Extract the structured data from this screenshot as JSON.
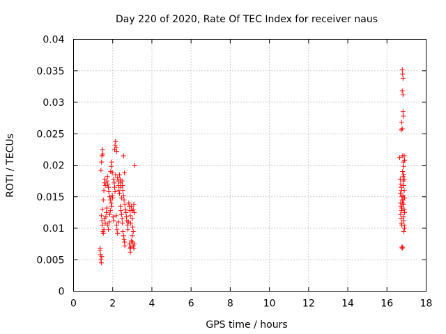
{
  "chart_data": {
    "type": "scatter",
    "title": "Day 220 of 2020, Rate Of TEC Index for receiver naus",
    "xlabel": "GPS time / hours",
    "ylabel": "ROTI / TECUs",
    "xlim": [
      0,
      18
    ],
    "ylim": [
      0,
      0.04
    ],
    "xticks": [
      0,
      2,
      4,
      6,
      8,
      10,
      12,
      14,
      16,
      18
    ],
    "xtick_labels": [
      "0",
      "2",
      "4",
      "6",
      "8",
      "10",
      "12",
      "14",
      "16",
      "18"
    ],
    "yticks": [
      0,
      0.005,
      0.01,
      0.015,
      0.02,
      0.025,
      0.03,
      0.035,
      0.04
    ],
    "ytick_labels": [
      "0",
      "0.005",
      "0.01",
      "0.015",
      "0.02",
      "0.025",
      "0.03",
      "0.035",
      "0.04"
    ],
    "grid": true,
    "marker": "+",
    "marker_color": "#ff0000",
    "series": [
      {
        "name": "naus",
        "points": [
          [
            1.35,
            0.0065
          ],
          [
            1.38,
            0.0058
          ],
          [
            1.4,
            0.005
          ],
          [
            1.42,
            0.0045
          ],
          [
            1.44,
            0.0055
          ],
          [
            1.36,
            0.0068
          ],
          [
            1.4,
            0.0192
          ],
          [
            1.43,
            0.0205
          ],
          [
            1.45,
            0.0215
          ],
          [
            1.48,
            0.0225
          ],
          [
            1.5,
            0.0218
          ],
          [
            1.42,
            0.012
          ],
          [
            1.45,
            0.0112
          ],
          [
            1.48,
            0.0105
          ],
          [
            1.5,
            0.0095
          ],
          [
            1.52,
            0.0092
          ],
          [
            1.55,
            0.0098
          ],
          [
            1.47,
            0.013
          ],
          [
            1.52,
            0.0145
          ],
          [
            1.55,
            0.016
          ],
          [
            1.58,
            0.0172
          ],
          [
            1.6,
            0.0178
          ],
          [
            1.62,
            0.0168
          ],
          [
            1.58,
            0.0115
          ],
          [
            1.62,
            0.0108
          ],
          [
            1.65,
            0.0118
          ],
          [
            1.68,
            0.0125
          ],
          [
            1.7,
            0.0132
          ],
          [
            1.7,
            0.0175
          ],
          [
            1.73,
            0.0182
          ],
          [
            1.75,
            0.017
          ],
          [
            1.78,
            0.0165
          ],
          [
            1.8,
            0.0158
          ],
          [
            1.75,
            0.0105
          ],
          [
            1.78,
            0.0098
          ],
          [
            1.82,
            0.011
          ],
          [
            1.85,
            0.0122
          ],
          [
            1.88,
            0.0128
          ],
          [
            1.85,
            0.015
          ],
          [
            1.88,
            0.0145
          ],
          [
            1.9,
            0.019
          ],
          [
            1.92,
            0.0198
          ],
          [
            1.95,
            0.0205
          ],
          [
            1.98,
            0.0188
          ],
          [
            1.92,
            0.014
          ],
          [
            1.95,
            0.0135
          ],
          [
            1.98,
            0.0152
          ],
          [
            2.0,
            0.0148
          ],
          [
            2.02,
            0.0118
          ],
          [
            2.05,
            0.0112
          ],
          [
            2.05,
            0.0178
          ],
          [
            2.08,
            0.0172
          ],
          [
            2.1,
            0.0165
          ],
          [
            2.12,
            0.0158
          ],
          [
            2.15,
            0.0185
          ],
          [
            2.1,
            0.0225
          ],
          [
            2.12,
            0.0232
          ],
          [
            2.15,
            0.0238
          ],
          [
            2.18,
            0.0228
          ],
          [
            2.2,
            0.0222
          ],
          [
            2.18,
            0.012
          ],
          [
            2.2,
            0.0105
          ],
          [
            2.22,
            0.0098
          ],
          [
            2.25,
            0.0092
          ],
          [
            2.28,
            0.011
          ],
          [
            2.25,
            0.018
          ],
          [
            2.28,
            0.0175
          ],
          [
            2.3,
            0.0168
          ],
          [
            2.32,
            0.016
          ],
          [
            2.35,
            0.0155
          ],
          [
            2.35,
            0.0185
          ],
          [
            2.38,
            0.0178
          ],
          [
            2.4,
            0.0172
          ],
          [
            2.42,
            0.0165
          ],
          [
            2.45,
            0.0148
          ],
          [
            2.4,
            0.0135
          ],
          [
            2.42,
            0.0128
          ],
          [
            2.45,
            0.0122
          ],
          [
            2.48,
            0.0115
          ],
          [
            2.5,
            0.0108
          ],
          [
            2.48,
            0.0175
          ],
          [
            2.5,
            0.0168
          ],
          [
            2.52,
            0.016
          ],
          [
            2.55,
            0.0152
          ],
          [
            2.58,
            0.0145
          ],
          [
            2.52,
            0.0095
          ],
          [
            2.55,
            0.0088
          ],
          [
            2.58,
            0.0082
          ],
          [
            2.6,
            0.0078
          ],
          [
            2.62,
            0.0072
          ],
          [
            2.55,
            0.0215
          ],
          [
            2.6,
            0.0188
          ],
          [
            2.62,
            0.0138
          ],
          [
            2.65,
            0.013
          ],
          [
            2.68,
            0.0125
          ],
          [
            2.7,
            0.0118
          ],
          [
            2.72,
            0.0112
          ],
          [
            2.75,
            0.0105
          ],
          [
            2.78,
            0.0098
          ],
          [
            2.8,
            0.011
          ],
          [
            2.82,
            0.014
          ],
          [
            2.85,
            0.0135
          ],
          [
            2.88,
            0.0128
          ],
          [
            2.9,
            0.012
          ],
          [
            2.92,
            0.0108
          ],
          [
            2.85,
            0.0075
          ],
          [
            2.88,
            0.0068
          ],
          [
            2.9,
            0.0062
          ],
          [
            2.92,
            0.007
          ],
          [
            2.95,
            0.008
          ],
          [
            2.95,
            0.0135
          ],
          [
            2.98,
            0.0128
          ],
          [
            3.0,
            0.0115
          ],
          [
            3.02,
            0.0102
          ],
          [
            3.05,
            0.0095
          ],
          [
            3.0,
            0.0088
          ],
          [
            3.02,
            0.0078
          ],
          [
            3.05,
            0.0072
          ],
          [
            3.08,
            0.0068
          ],
          [
            3.1,
            0.0075
          ],
          [
            3.05,
            0.013
          ],
          [
            3.08,
            0.0138
          ],
          [
            3.1,
            0.0125
          ],
          [
            3.12,
            0.02
          ],
          [
            16.65,
            0.0212
          ],
          [
            16.68,
            0.0178
          ],
          [
            16.7,
            0.017
          ],
          [
            16.72,
            0.0165
          ],
          [
            16.68,
            0.0155
          ],
          [
            16.7,
            0.014
          ],
          [
            16.72,
            0.0135
          ],
          [
            16.74,
            0.0128
          ],
          [
            16.7,
            0.0122
          ],
          [
            16.72,
            0.0115
          ],
          [
            16.74,
            0.0108
          ],
          [
            16.76,
            0.0105
          ],
          [
            16.72,
            0.0256
          ],
          [
            16.75,
            0.0268
          ],
          [
            16.78,
            0.0258
          ],
          [
            16.76,
            0.007
          ],
          [
            16.78,
            0.0068
          ],
          [
            16.8,
            0.007
          ],
          [
            16.78,
            0.0352
          ],
          [
            16.8,
            0.0345
          ],
          [
            16.82,
            0.0338
          ],
          [
            16.78,
            0.0318
          ],
          [
            16.82,
            0.0312
          ],
          [
            16.82,
            0.0285
          ],
          [
            16.84,
            0.0278
          ],
          [
            16.8,
            0.0215
          ],
          [
            16.84,
            0.0205
          ],
          [
            16.86,
            0.0198
          ],
          [
            16.8,
            0.019
          ],
          [
            16.82,
            0.0182
          ],
          [
            16.84,
            0.0175
          ],
          [
            16.86,
            0.0168
          ],
          [
            16.88,
            0.016
          ],
          [
            16.82,
            0.0152
          ],
          [
            16.84,
            0.0145
          ],
          [
            16.86,
            0.0138
          ],
          [
            16.88,
            0.013
          ],
          [
            16.9,
            0.0125
          ],
          [
            16.84,
            0.0118
          ],
          [
            16.86,
            0.0112
          ],
          [
            16.88,
            0.0105
          ],
          [
            16.9,
            0.01
          ],
          [
            16.86,
            0.0095
          ],
          [
            16.74,
            0.016
          ],
          [
            16.76,
            0.015
          ],
          [
            16.78,
            0.0145
          ],
          [
            16.8,
            0.014
          ],
          [
            16.76,
            0.0132
          ],
          [
            16.88,
            0.0215
          ],
          [
            16.9,
            0.0208
          ],
          [
            16.86,
            0.0185
          ],
          [
            16.88,
            0.0178
          ],
          [
            16.9,
            0.0148
          ]
        ]
      }
    ]
  }
}
